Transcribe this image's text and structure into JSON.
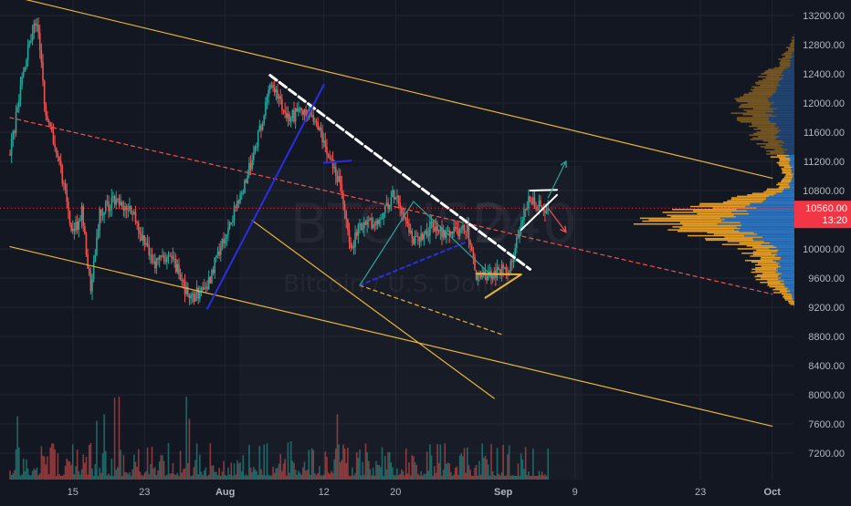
{
  "symbol": {
    "ticker": "BTCUSD",
    "interval": "240",
    "name": "Bitcoin / U.S. Dollar"
  },
  "price_badge": {
    "price": "10560.00",
    "countdown": "13:20",
    "color": "#f23645"
  },
  "colors": {
    "background": "#131722",
    "bull": "#26a69a",
    "bear": "#ef5350",
    "trendline": "#e8b33a",
    "blue_line": "#2a2ee0",
    "white_line": "#ffffff",
    "profile_orange": "#f0a321",
    "profile_blue": "#2f7fd6"
  },
  "chart_data": {
    "type": "candlestick",
    "title": "",
    "y_axis": {
      "ticks": [
        13200,
        12800,
        12400,
        12000,
        11600,
        11200,
        10800,
        10400,
        10000,
        9600,
        9200,
        8800,
        8400,
        8000,
        7600,
        7200
      ],
      "labels": [
        "13200.00",
        "12800.00",
        "12400.00",
        "12000.00",
        "11600.00",
        "11200.00",
        "10800.00",
        "10400.00",
        "10000.00",
        "9600.00",
        "9200.00",
        "8800.00",
        "8400.00",
        "8000.00",
        "7600.00",
        "7200.00"
      ],
      "ylim": [
        6950,
        13400
      ]
    },
    "x_axis": {
      "labels": [
        "15",
        "23",
        "Aug",
        "12",
        "20",
        "Sep",
        "9",
        "23",
        "Oct"
      ],
      "bold_labels": [
        "Aug",
        "Sep",
        "Oct"
      ]
    },
    "interval_hours": 4,
    "start_date": "2019-07-08",
    "last_price": 10560,
    "approx_path": [
      {
        "date": "2019-07-08",
        "price": 11300
      },
      {
        "date": "2019-07-10",
        "price": 12800
      },
      {
        "date": "2019-07-11",
        "price": 13150
      },
      {
        "date": "2019-07-12",
        "price": 11800
      },
      {
        "date": "2019-07-13",
        "price": 11400
      },
      {
        "date": "2019-07-14",
        "price": 10900
      },
      {
        "date": "2019-07-15",
        "price": 10200
      },
      {
        "date": "2019-07-16",
        "price": 10500
      },
      {
        "date": "2019-07-17",
        "price": 9400
      },
      {
        "date": "2019-07-18",
        "price": 10500
      },
      {
        "date": "2019-07-20",
        "price": 10700
      },
      {
        "date": "2019-07-22",
        "price": 10400
      },
      {
        "date": "2019-07-24",
        "price": 9800
      },
      {
        "date": "2019-07-26",
        "price": 9900
      },
      {
        "date": "2019-07-28",
        "price": 9300
      },
      {
        "date": "2019-07-30",
        "price": 9500
      },
      {
        "date": "2019-08-01",
        "price": 10200
      },
      {
        "date": "2019-08-03",
        "price": 10800
      },
      {
        "date": "2019-08-05",
        "price": 11700
      },
      {
        "date": "2019-08-06",
        "price": 12300
      },
      {
        "date": "2019-08-08",
        "price": 11800
      },
      {
        "date": "2019-08-10",
        "price": 11900
      },
      {
        "date": "2019-08-12",
        "price": 11500
      },
      {
        "date": "2019-08-14",
        "price": 10800
      },
      {
        "date": "2019-08-15",
        "price": 10000
      },
      {
        "date": "2019-08-16",
        "price": 10300
      },
      {
        "date": "2019-08-18",
        "price": 10400
      },
      {
        "date": "2019-08-20",
        "price": 10800
      },
      {
        "date": "2019-08-22",
        "price": 10100
      },
      {
        "date": "2019-08-24",
        "price": 10300
      },
      {
        "date": "2019-08-26",
        "price": 10200
      },
      {
        "date": "2019-08-28",
        "price": 10300
      },
      {
        "date": "2019-08-29",
        "price": 9600
      },
      {
        "date": "2019-08-31",
        "price": 9650
      },
      {
        "date": "2019-09-02",
        "price": 9800
      },
      {
        "date": "2019-09-03",
        "price": 10400
      },
      {
        "date": "2019-09-04",
        "price": 10700
      },
      {
        "date": "2019-09-05",
        "price": 10600
      },
      {
        "date": "2019-09-06",
        "price": 10560
      }
    ],
    "drawings": [
      {
        "kind": "line",
        "color": "trendline",
        "from": {
          "date": "2019-07-08",
          "price": 13470
        },
        "to": {
          "date": "2019-10-01",
          "price": 10970
        }
      },
      {
        "kind": "line",
        "color": "trendline",
        "from": {
          "date": "2019-07-08",
          "price": 10030
        },
        "to": {
          "date": "2019-10-01",
          "price": 7570
        }
      },
      {
        "kind": "line",
        "color": "trendline",
        "from": {
          "date": "2019-08-04",
          "price": 10390
        },
        "to": {
          "date": "2019-08-31",
          "price": 7950
        }
      },
      {
        "kind": "line",
        "color": "bear",
        "dash": true,
        "from": {
          "date": "2019-07-08",
          "price": 11800
        },
        "to": {
          "date": "2019-10-01",
          "price": 9380
        }
      },
      {
        "kind": "line",
        "color": "trendline",
        "dash": true,
        "from": {
          "date": "2019-08-16",
          "price": 9500
        },
        "to": {
          "date": "2019-09-01",
          "price": 8820
        }
      },
      {
        "kind": "line",
        "color": "white_line",
        "dash": true,
        "width": 3,
        "from": {
          "date": "2019-08-06",
          "price": 12380
        },
        "to": {
          "date": "2019-09-04",
          "price": 9720
        }
      },
      {
        "kind": "line",
        "color": "blue_line",
        "width": 2,
        "from": {
          "date": "2019-07-30",
          "price": 9180
        },
        "to": {
          "date": "2019-08-12",
          "price": 12250
        }
      },
      {
        "kind": "line",
        "color": "blue_line",
        "dash": true,
        "width": 2,
        "from": {
          "date": "2019-08-16",
          "price": 9500
        },
        "to": {
          "date": "2019-08-28",
          "price": 10100
        }
      },
      {
        "kind": "line",
        "color": "bull",
        "from": {
          "date": "2019-08-16",
          "price": 9500
        },
        "to": {
          "date": "2019-08-22",
          "price": 10650
        }
      },
      {
        "kind": "line",
        "color": "bull",
        "from": {
          "date": "2019-08-22",
          "price": 10650
        },
        "to": {
          "date": "2019-08-31",
          "price": 9600
        }
      },
      {
        "kind": "line",
        "color": "blue_line",
        "width": 2,
        "from": {
          "date": "2019-08-12",
          "price": 11180
        },
        "to": {
          "date": "2019-08-15",
          "price": 11210
        }
      },
      {
        "kind": "line",
        "color": "trendline",
        "width": 2,
        "from": {
          "date": "2019-08-29",
          "price": 9660
        },
        "to": {
          "date": "2019-09-03",
          "price": 9650
        }
      },
      {
        "kind": "line",
        "color": "trendline",
        "width": 2,
        "from": {
          "date": "2019-08-30",
          "price": 9330
        },
        "to": {
          "date": "2019-09-03",
          "price": 9650
        }
      },
      {
        "kind": "line",
        "color": "white_line",
        "width": 2,
        "from": {
          "date": "2019-09-04",
          "price": 10800
        },
        "to": {
          "date": "2019-09-07",
          "price": 10810
        }
      },
      {
        "kind": "line",
        "color": "white_line",
        "width": 2,
        "from": {
          "date": "2019-09-03",
          "price": 10260
        },
        "to": {
          "date": "2019-09-07",
          "price": 10740
        }
      },
      {
        "kind": "arrow",
        "color": "bull",
        "from": {
          "date": "2019-09-06",
          "price": 10700
        },
        "to": {
          "date": "2019-09-08",
          "price": 11200
        }
      },
      {
        "kind": "arrow",
        "color": "bear",
        "from": {
          "date": "2019-09-06",
          "price": 10560
        },
        "to": {
          "date": "2019-09-08",
          "price": 10230
        }
      }
    ],
    "volume_profile": {
      "value_area": [
        9000,
        11300
      ],
      "poc": 10400
    }
  }
}
